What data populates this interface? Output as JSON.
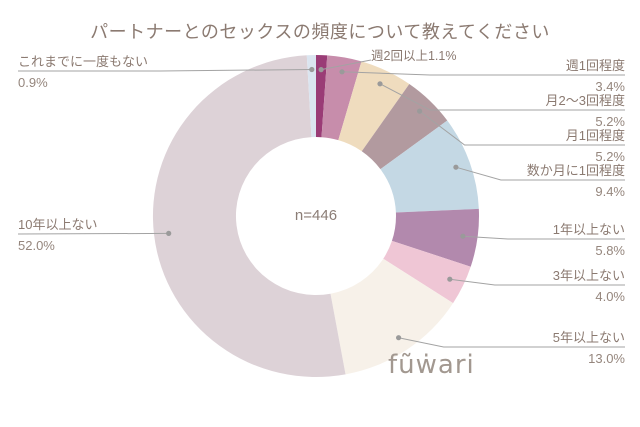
{
  "chart_data": {
    "type": "donut",
    "title": "パートナーとのセックスの頻度について教えてください",
    "center_label": "n=446",
    "start_angle": "top",
    "direction": "clockwise",
    "legend_position": "callout-labels",
    "slices": [
      {
        "label": "週2回以上",
        "pct": "1.1%",
        "value": 1.1,
        "color": "#9a3c76"
      },
      {
        "label": "週1回程度",
        "pct": "3.4%",
        "value": 3.4,
        "color": "#c78dab"
      },
      {
        "label": "月2〜3回程度",
        "pct": "5.2%",
        "value": 5.2,
        "color": "#efdcbe"
      },
      {
        "label": "月1回程度",
        "pct": "5.2%",
        "value": 5.2,
        "color": "#b29a9f"
      },
      {
        "label": "数か月に1回程度",
        "pct": "9.4%",
        "value": 9.4,
        "color": "#c4d8e4"
      },
      {
        "label": "1年以上ない",
        "pct": "5.8%",
        "value": 5.8,
        "color": "#b289ad"
      },
      {
        "label": "3年以上ない",
        "pct": "4.0%",
        "value": 4.0,
        "color": "#efc6d5"
      },
      {
        "label": "5年以上ない",
        "pct": "13.0%",
        "value": 13.0,
        "color": "#f7f1e9"
      },
      {
        "label": "10年以上ない",
        "pct": "52.0%",
        "value": 52.0,
        "color": "#ddd2d7"
      },
      {
        "label": "これまでに一度もない",
        "pct": "0.9%",
        "value": 0.9,
        "color": "#dbe5f0"
      }
    ],
    "colors": {
      "label_text": "#8b7a71",
      "pct_text": "#95867d",
      "leader_line": "#a3a3a3"
    }
  },
  "branding": {
    "logo_text": "fũẇari"
  }
}
